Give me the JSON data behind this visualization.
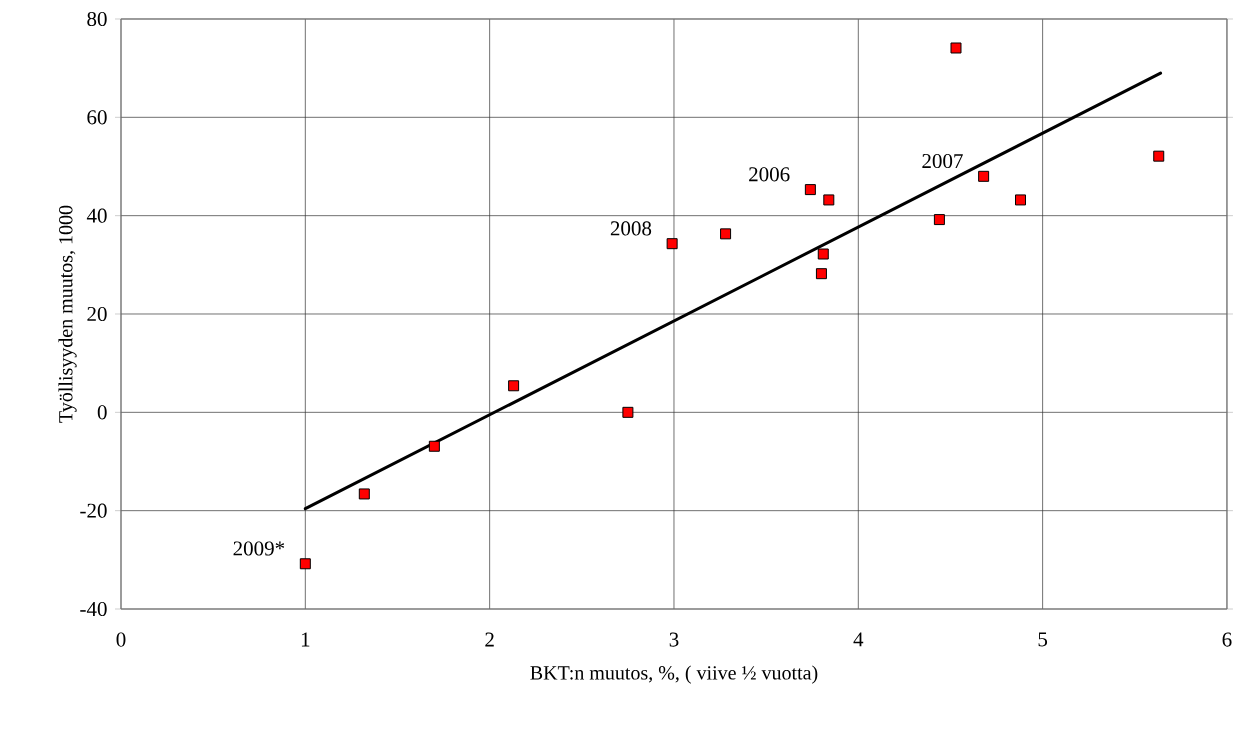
{
  "chart_data": {
    "type": "scatter",
    "xlabel": "BKT:n muutos, %, ( viive ½ vuotta)",
    "ylabel": "Työllisyyden muutos, 1000",
    "xlim": [
      0,
      6
    ],
    "ylim": [
      -40,
      80
    ],
    "xticks": [
      0,
      1,
      2,
      3,
      4,
      5,
      6
    ],
    "yticks": [
      -40,
      -20,
      0,
      20,
      40,
      60,
      80
    ],
    "grid": true,
    "series": [
      {
        "marker": "square",
        "color": "#ff0000",
        "x": [
          1.0,
          1.32,
          1.7,
          2.13,
          2.75,
          2.99,
          3.28,
          3.74,
          3.84,
          3.81,
          3.8,
          4.53,
          4.44,
          4.68,
          4.88,
          5.63
        ],
        "values": [
          -30.8,
          -16.6,
          -6.9,
          5.4,
          0,
          34.3,
          36.3,
          45.3,
          43.2,
          32.2,
          28.2,
          74.1,
          39.2,
          48.0,
          43.2,
          52.1
        ]
      },
      {
        "type": "line",
        "marker": "none",
        "color": "#000000",
        "x": [
          1.0,
          5.64
        ],
        "values": [
          -19.6,
          69.0
        ]
      }
    ],
    "annotations": [
      {
        "text": "2009*",
        "x": 1.0,
        "y": -30.8
      },
      {
        "text": "2008",
        "x": 2.99,
        "y": 34.3
      },
      {
        "text": "2006",
        "x": 3.74,
        "y": 45.3
      },
      {
        "text": "2007",
        "x": 4.68,
        "y": 48.0
      }
    ]
  }
}
